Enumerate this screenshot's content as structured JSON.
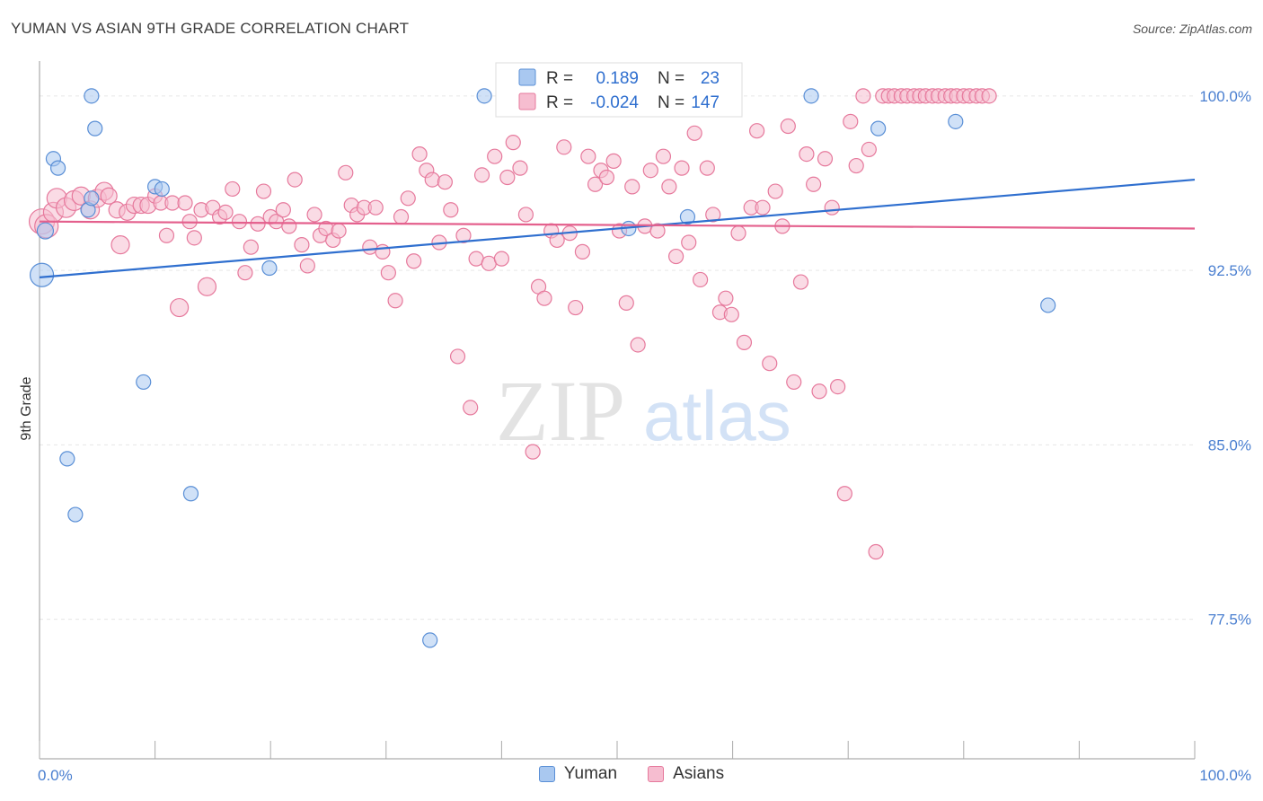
{
  "title": "YUMAN VS ASIAN 9TH GRADE CORRELATION CHART",
  "source": "Source: ZipAtlas.com",
  "watermark": {
    "zip": "ZIP",
    "atlas": "atlas"
  },
  "colors": {
    "yuman_fill": "#a9c8f0",
    "yuman_stroke": "#5a8fd6",
    "yuman_line": "#2f6fcf",
    "asian_fill": "#f6bdd0",
    "asian_stroke": "#e6799c",
    "asian_line": "#e4608d",
    "tick_label": "#4a7fd0",
    "grid": "#e6e6e6"
  },
  "legend_box": {
    "rows": [
      {
        "series": "Yuman",
        "r_label": "R =",
        "r_value": "0.189",
        "n_label": "N =",
        "n_value": "23"
      },
      {
        "series": "Asians",
        "r_label": "R =",
        "r_value": "-0.024",
        "n_label": "N =",
        "n_value": "147"
      }
    ]
  },
  "chart_data": {
    "type": "scatter",
    "title": "YUMAN VS ASIAN 9TH GRADE CORRELATION CHART",
    "xlabel": "",
    "ylabel": "9th Grade",
    "xlim": [
      0,
      100
    ],
    "ylim": [
      71.5,
      101.5
    ],
    "x_tick_labels": [
      {
        "value": 0,
        "label": "0.0%"
      },
      {
        "value": 100,
        "label": "100.0%"
      }
    ],
    "y_tick_labels": [
      {
        "value": 100.0,
        "label": "100.0%"
      },
      {
        "value": 92.5,
        "label": "92.5%"
      },
      {
        "value": 85.0,
        "label": "85.0%"
      },
      {
        "value": 77.5,
        "label": "77.5%"
      }
    ],
    "grid": true,
    "legend_placement": "bottom-center",
    "series": [
      {
        "name": "Yuman",
        "trend": {
          "x": [
            0,
            100
          ],
          "y": [
            92.2,
            96.4
          ]
        },
        "points": [
          [
            0.2,
            92.3,
            13
          ],
          [
            0.5,
            94.2,
            9
          ],
          [
            1.2,
            97.3,
            8
          ],
          [
            1.6,
            96.9,
            8
          ],
          [
            2.4,
            84.4,
            8
          ],
          [
            3.1,
            82.0,
            8
          ],
          [
            4.2,
            95.1,
            8
          ],
          [
            4.5,
            95.6,
            8
          ],
          [
            4.5,
            100.0,
            8
          ],
          [
            4.8,
            98.6,
            8
          ],
          [
            9.0,
            87.7,
            8
          ],
          [
            10.0,
            96.1,
            8
          ],
          [
            10.6,
            96.0,
            8
          ],
          [
            13.1,
            82.9,
            8
          ],
          [
            19.9,
            92.6,
            8
          ],
          [
            33.8,
            76.6,
            8
          ],
          [
            38.5,
            100.0,
            8
          ],
          [
            51.0,
            94.3,
            8
          ],
          [
            56.1,
            94.8,
            8
          ],
          [
            66.8,
            100.0,
            8
          ],
          [
            72.6,
            98.6,
            8
          ],
          [
            79.3,
            98.9,
            8
          ],
          [
            87.3,
            91.0,
            8
          ]
        ]
      },
      {
        "name": "Asians",
        "trend": {
          "x": [
            0,
            100
          ],
          "y": [
            94.6,
            94.3
          ]
        },
        "points": [
          [
            0.2,
            94.6,
            14
          ],
          [
            0.6,
            94.4,
            13
          ],
          [
            1.2,
            95.0,
            11
          ],
          [
            1.5,
            95.6,
            11
          ],
          [
            2.3,
            95.2,
            11
          ],
          [
            3.0,
            95.5,
            11
          ],
          [
            3.6,
            95.7,
            10
          ],
          [
            4.4,
            95.1,
            10
          ],
          [
            5.0,
            95.6,
            10
          ],
          [
            5.6,
            95.9,
            10
          ],
          [
            6.0,
            95.7,
            9
          ],
          [
            6.7,
            95.1,
            9
          ],
          [
            7.0,
            93.6,
            10
          ],
          [
            7.6,
            95.0,
            9
          ],
          [
            8.2,
            95.3,
            9
          ],
          [
            8.8,
            95.3,
            9
          ],
          [
            9.4,
            95.3,
            9
          ],
          [
            10.0,
            95.7,
            8
          ],
          [
            10.5,
            95.4,
            8
          ],
          [
            11.0,
            94.0,
            8
          ],
          [
            11.5,
            95.4,
            8
          ],
          [
            12.1,
            90.9,
            10
          ],
          [
            12.6,
            95.4,
            8
          ],
          [
            13.0,
            94.6,
            8
          ],
          [
            13.4,
            93.9,
            8
          ],
          [
            14.0,
            95.1,
            8
          ],
          [
            14.5,
            91.8,
            10
          ],
          [
            15.0,
            95.2,
            8
          ],
          [
            15.6,
            94.8,
            8
          ],
          [
            16.1,
            95.0,
            8
          ],
          [
            16.7,
            96.0,
            8
          ],
          [
            17.3,
            94.6,
            8
          ],
          [
            17.8,
            92.4,
            8
          ],
          [
            18.3,
            93.5,
            8
          ],
          [
            18.9,
            94.5,
            8
          ],
          [
            19.4,
            95.9,
            8
          ],
          [
            20.0,
            94.8,
            8
          ],
          [
            20.5,
            94.6,
            8
          ],
          [
            21.1,
            95.1,
            8
          ],
          [
            21.6,
            94.4,
            8
          ],
          [
            22.1,
            96.4,
            8
          ],
          [
            22.7,
            93.6,
            8
          ],
          [
            23.2,
            92.7,
            8
          ],
          [
            23.8,
            94.9,
            8
          ],
          [
            24.3,
            94.0,
            8
          ],
          [
            24.8,
            94.3,
            8
          ],
          [
            25.4,
            93.8,
            8
          ],
          [
            25.9,
            94.2,
            8
          ],
          [
            26.5,
            96.7,
            8
          ],
          [
            27.0,
            95.3,
            8
          ],
          [
            27.5,
            94.9,
            8
          ],
          [
            28.1,
            95.2,
            8
          ],
          [
            28.6,
            93.5,
            8
          ],
          [
            29.1,
            95.2,
            8
          ],
          [
            29.7,
            93.3,
            8
          ],
          [
            30.2,
            92.4,
            8
          ],
          [
            30.8,
            91.2,
            8
          ],
          [
            31.3,
            94.8,
            8
          ],
          [
            31.9,
            95.6,
            8
          ],
          [
            32.4,
            92.9,
            8
          ],
          [
            32.9,
            97.5,
            8
          ],
          [
            33.5,
            96.8,
            8
          ],
          [
            34.0,
            96.4,
            8
          ],
          [
            34.6,
            93.7,
            8
          ],
          [
            35.1,
            96.3,
            8
          ],
          [
            35.6,
            95.1,
            8
          ],
          [
            36.2,
            88.8,
            8
          ],
          [
            36.7,
            94.0,
            8
          ],
          [
            37.3,
            86.6,
            8
          ],
          [
            37.8,
            93.0,
            8
          ],
          [
            38.3,
            96.6,
            8
          ],
          [
            38.9,
            92.8,
            8
          ],
          [
            39.4,
            97.4,
            8
          ],
          [
            40.0,
            93.0,
            8
          ],
          [
            40.5,
            96.5,
            8
          ],
          [
            41.0,
            98.0,
            8
          ],
          [
            41.6,
            96.9,
            8
          ],
          [
            42.1,
            94.9,
            8
          ],
          [
            42.7,
            84.7,
            8
          ],
          [
            43.2,
            91.8,
            8
          ],
          [
            43.7,
            91.3,
            8
          ],
          [
            44.3,
            94.2,
            8
          ],
          [
            44.8,
            93.8,
            8
          ],
          [
            45.4,
            97.8,
            8
          ],
          [
            45.9,
            94.1,
            8
          ],
          [
            46.4,
            90.9,
            8
          ],
          [
            47.0,
            93.3,
            8
          ],
          [
            47.5,
            97.4,
            8
          ],
          [
            48.1,
            96.2,
            8
          ],
          [
            48.6,
            96.8,
            8
          ],
          [
            49.1,
            96.5,
            8
          ],
          [
            49.7,
            97.2,
            8
          ],
          [
            50.2,
            94.2,
            8
          ],
          [
            50.8,
            91.1,
            8
          ],
          [
            51.3,
            96.1,
            8
          ],
          [
            51.8,
            89.3,
            8
          ],
          [
            52.4,
            94.4,
            8
          ],
          [
            52.9,
            96.8,
            8
          ],
          [
            53.5,
            94.2,
            8
          ],
          [
            54.0,
            97.4,
            8
          ],
          [
            54.5,
            96.1,
            8
          ],
          [
            55.1,
            93.1,
            8
          ],
          [
            55.6,
            96.9,
            8
          ],
          [
            56.2,
            93.7,
            8
          ],
          [
            56.7,
            98.4,
            8
          ],
          [
            57.2,
            92.1,
            8
          ],
          [
            57.8,
            96.9,
            8
          ],
          [
            58.3,
            94.9,
            8
          ],
          [
            58.9,
            90.7,
            8
          ],
          [
            59.4,
            91.3,
            8
          ],
          [
            59.9,
            90.6,
            8
          ],
          [
            60.5,
            94.1,
            8
          ],
          [
            61.0,
            89.4,
            8
          ],
          [
            61.6,
            95.2,
            8
          ],
          [
            62.1,
            98.5,
            8
          ],
          [
            62.6,
            95.2,
            8
          ],
          [
            63.2,
            88.5,
            8
          ],
          [
            63.7,
            95.9,
            8
          ],
          [
            64.3,
            94.4,
            8
          ],
          [
            64.8,
            98.7,
            8
          ],
          [
            65.3,
            87.7,
            8
          ],
          [
            65.9,
            92.0,
            8
          ],
          [
            66.4,
            97.5,
            8
          ],
          [
            67.0,
            96.2,
            8
          ],
          [
            67.5,
            87.3,
            8
          ],
          [
            68.0,
            97.3,
            8
          ],
          [
            68.6,
            95.2,
            8
          ],
          [
            69.1,
            87.5,
            8
          ],
          [
            69.7,
            82.9,
            8
          ],
          [
            70.2,
            98.9,
            8
          ],
          [
            70.7,
            97.0,
            8
          ],
          [
            71.3,
            100.0,
            8
          ],
          [
            71.8,
            97.7,
            8
          ],
          [
            72.4,
            80.4,
            8
          ],
          [
            73.0,
            100.0,
            8
          ],
          [
            73.5,
            100.0,
            8
          ],
          [
            74.0,
            100.0,
            8
          ],
          [
            74.6,
            100.0,
            8
          ],
          [
            75.1,
            100.0,
            8
          ],
          [
            75.7,
            100.0,
            8
          ],
          [
            76.2,
            100.0,
            8
          ],
          [
            76.7,
            100.0,
            8
          ],
          [
            77.3,
            100.0,
            8
          ],
          [
            77.8,
            100.0,
            8
          ],
          [
            78.4,
            100.0,
            8
          ],
          [
            78.9,
            100.0,
            8
          ],
          [
            79.4,
            100.0,
            8
          ],
          [
            80.0,
            100.0,
            8
          ],
          [
            80.5,
            100.0,
            8
          ],
          [
            81.1,
            100.0,
            8
          ],
          [
            81.6,
            100.0,
            8
          ],
          [
            82.2,
            100.0,
            8
          ]
        ]
      }
    ]
  }
}
